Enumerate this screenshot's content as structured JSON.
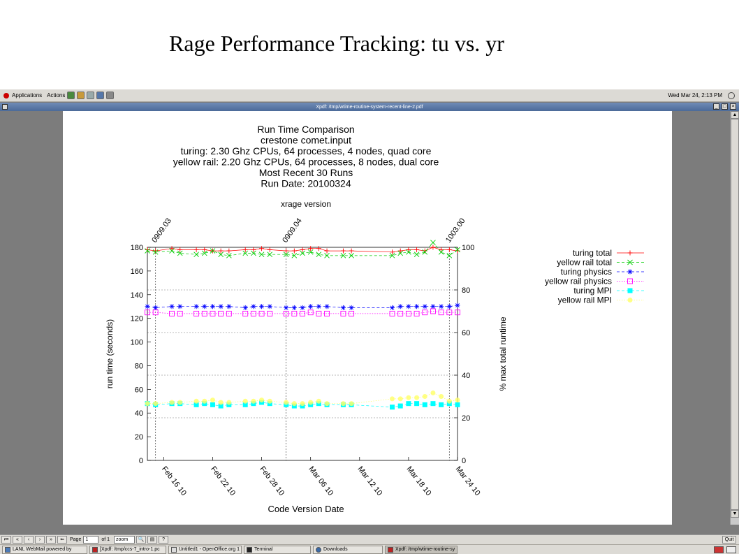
{
  "slide": {
    "title": "Rage Performance Tracking: tu vs. yr"
  },
  "top_panel": {
    "applications_label": "Applications",
    "actions_label": "Actions",
    "clock": "Wed Mar 24,  2:13 PM"
  },
  "window": {
    "title": "Xpdf: /tmp/wtime-routine-system-recent-line-2.pdf"
  },
  "toolbar": {
    "page_label": "Page",
    "page_value": "1",
    "of_label": "of  1",
    "zoom_value": "zoom",
    "quit_label": "Quit"
  },
  "taskbar": {
    "items": [
      {
        "label": "LANL WebMail powered by"
      },
      {
        "label": "[Xpdf: /tmp/ccs-7_intro-1.pc"
      },
      {
        "label": "Untitled1 - OpenOffice.org 1"
      },
      {
        "label": "Terminal"
      },
      {
        "label": "Downloads"
      },
      {
        "label": "Xpdf: /tmp/wtime-routine-sy"
      }
    ]
  },
  "chart_data": {
    "type": "line",
    "title_lines": [
      "Run Time Comparison",
      "crestone comet.input",
      "turing:     2.30 Ghz CPUs,  64 processes,  4 nodes,  quad core",
      "yellow rail:     2.20 Ghz CPUs,  64 processes,  8 nodes,  dual core",
      "Most Recent 30 Runs",
      "Run Date: 20100324"
    ],
    "top_axis_label": "xrage version",
    "version_markers": [
      {
        "label": "0909.03",
        "x": "2010-02-15"
      },
      {
        "label": "0909.04",
        "x": "2010-03-03"
      },
      {
        "label": "1003.00",
        "x": "2010-03-23"
      }
    ],
    "xlabel": "Code Version Date",
    "ylabel": "run time (seconds)",
    "y2label": "% max total runtime",
    "xlim": [
      "2010-02-14",
      "2010-03-24"
    ],
    "ylim": [
      0,
      180
    ],
    "y2lim": [
      0,
      100
    ],
    "x_ticks": [
      "Feb 16 10",
      "Feb 22 10",
      "Feb 28 10",
      "Mar 06 10",
      "Mar 12 10",
      "Mar 18 10",
      "Mar 24 10"
    ],
    "y_ticks": [
      0,
      20,
      40,
      60,
      80,
      100,
      120,
      140,
      160,
      180
    ],
    "y2_ticks": [
      0,
      20,
      40,
      60,
      80,
      100
    ],
    "legend_position": "right",
    "x": [
      "2010-02-14",
      "2010-02-15",
      "2010-02-17",
      "2010-02-18",
      "2010-02-20",
      "2010-02-21",
      "2010-02-22",
      "2010-02-23",
      "2010-02-24",
      "2010-02-26",
      "2010-02-27",
      "2010-02-28",
      "2010-03-01",
      "2010-03-03",
      "2010-03-04",
      "2010-03-05",
      "2010-03-06",
      "2010-03-07",
      "2010-03-08",
      "2010-03-10",
      "2010-03-11",
      "2010-03-16",
      "2010-03-17",
      "2010-03-18",
      "2010-03-19",
      "2010-03-20",
      "2010-03-21",
      "2010-03-22",
      "2010-03-23",
      "2010-03-24"
    ],
    "series": [
      {
        "name": "turing total",
        "color": "#ff0000",
        "marker": "plus",
        "dash": "solid",
        "values": [
          178,
          177,
          179,
          178,
          178,
          178,
          177,
          177,
          177,
          178,
          178,
          179,
          178,
          177,
          177,
          178,
          179,
          179,
          177,
          177,
          177,
          176,
          177,
          178,
          178,
          177,
          180,
          178,
          178,
          177
        ]
      },
      {
        "name": "yellow rail total",
        "color": "#00cc00",
        "marker": "cross",
        "dash": "dashed",
        "values": [
          177,
          176,
          177,
          175,
          174,
          175,
          177,
          174,
          173,
          175,
          175,
          174,
          174,
          174,
          173,
          175,
          176,
          174,
          173,
          173,
          173,
          173,
          175,
          176,
          174,
          176,
          184,
          176,
          173,
          178
        ]
      },
      {
        "name": "turing physics",
        "color": "#0000ff",
        "marker": "star",
        "dash": "dashed",
        "values": [
          130,
          129,
          130,
          130,
          130,
          130,
          130,
          130,
          130,
          129,
          130,
          130,
          130,
          129,
          129,
          129,
          130,
          130,
          130,
          129,
          129,
          129,
          130,
          130,
          130,
          130,
          130,
          130,
          130,
          131
        ]
      },
      {
        "name": "yellow rail physics",
        "color": "#ff00ff",
        "marker": "square",
        "dash": "dotted",
        "values": [
          125,
          125,
          124,
          124,
          124,
          124,
          124,
          124,
          124,
          124,
          124,
          124,
          124,
          124,
          124,
          124,
          125,
          124,
          124,
          124,
          124,
          124,
          124,
          124,
          124,
          125,
          126,
          125,
          125,
          125
        ]
      },
      {
        "name": "turing MPI",
        "color": "#00ffff",
        "marker": "filled-square",
        "dash": "dashed",
        "values": [
          48,
          47,
          48,
          48,
          47,
          48,
          47,
          46,
          47,
          47,
          48,
          49,
          48,
          47,
          46,
          46,
          47,
          48,
          47,
          47,
          47,
          45,
          46,
          48,
          48,
          47,
          48,
          47,
          48,
          47
        ]
      },
      {
        "name": "yellow rail MPI",
        "color": "#ffff66",
        "marker": "circle",
        "dash": "dotted",
        "values": [
          48,
          48,
          49,
          49,
          50,
          50,
          51,
          49,
          49,
          50,
          50,
          51,
          50,
          49,
          48,
          48,
          49,
          50,
          48,
          48,
          48,
          52,
          52,
          53,
          53,
          54,
          57,
          54,
          50,
          51
        ]
      }
    ]
  }
}
